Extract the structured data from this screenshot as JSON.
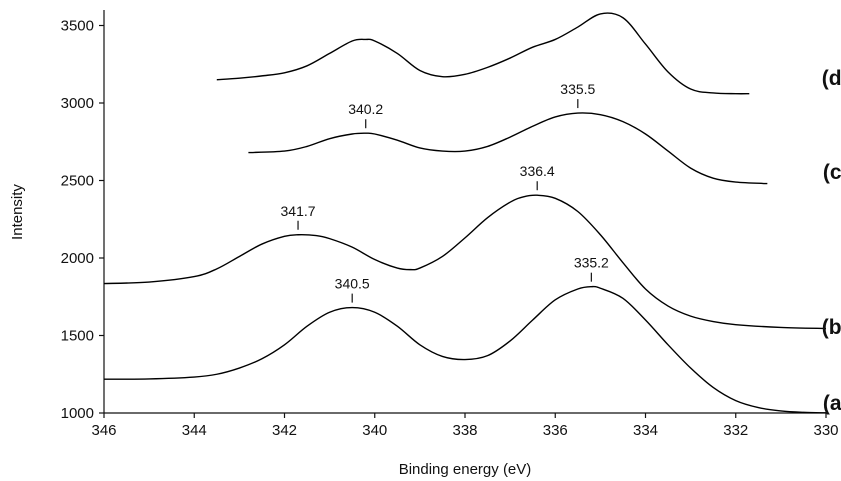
{
  "chart_data": {
    "type": "line",
    "xlabel": "Binding energy (eV)",
    "ylabel": "Intensity",
    "xlim": [
      346,
      330
    ],
    "ylim": [
      1000,
      3600
    ],
    "x_reversed": true,
    "grid": false,
    "xticks": [
      346,
      344,
      342,
      340,
      338,
      336,
      334,
      332,
      330
    ],
    "yticks": [
      1000,
      1500,
      2000,
      2500,
      3000,
      3500
    ],
    "series": [
      {
        "name": "(a)",
        "x": [
          346,
          345,
          344,
          343.5,
          343,
          342.5,
          342,
          341.5,
          341,
          340.5,
          340,
          339.5,
          339,
          338.5,
          338,
          337.5,
          337,
          336.5,
          336,
          335.5,
          335.2,
          335,
          334.5,
          334,
          333.5,
          333,
          332.5,
          332,
          331.5,
          331,
          330.5,
          330
        ],
        "values": [
          1218,
          1220,
          1232,
          1250,
          1290,
          1350,
          1440,
          1560,
          1650,
          1680,
          1650,
          1560,
          1440,
          1365,
          1345,
          1370,
          1465,
          1600,
          1730,
          1800,
          1815,
          1805,
          1740,
          1600,
          1440,
          1290,
          1165,
          1080,
          1035,
          1013,
          1004,
          1001
        ],
        "label_x": 329.5,
        "label_y": 1065
      },
      {
        "name": "(b)",
        "x": [
          346,
          345,
          344,
          343.5,
          343,
          342.5,
          342,
          341.7,
          341.3,
          341,
          340.5,
          340,
          339.5,
          339.2,
          339,
          338.5,
          338,
          337.5,
          337,
          336.7,
          336.4,
          336,
          335.5,
          335,
          334.5,
          334,
          333.5,
          333,
          332.5,
          332,
          331,
          330
        ],
        "values": [
          1835,
          1845,
          1880,
          1930,
          2010,
          2090,
          2140,
          2150,
          2145,
          2125,
          2070,
          1990,
          1935,
          1925,
          1935,
          2010,
          2130,
          2260,
          2360,
          2395,
          2405,
          2385,
          2300,
          2150,
          1970,
          1800,
          1690,
          1625,
          1590,
          1570,
          1552,
          1545
        ],
        "label_x": 329.5,
        "label_y": 1555
      },
      {
        "name": "(c)",
        "x": [
          342.8,
          342,
          341.5,
          341,
          340.5,
          340.2,
          340,
          339.5,
          339,
          338.5,
          338,
          337.5,
          337,
          336.5,
          336,
          335.5,
          335,
          334.5,
          334,
          333.5,
          333,
          332.5,
          332,
          331.3
        ],
        "values": [
          2680,
          2690,
          2720,
          2770,
          2800,
          2805,
          2800,
          2760,
          2710,
          2690,
          2690,
          2720,
          2780,
          2850,
          2910,
          2935,
          2925,
          2880,
          2800,
          2690,
          2580,
          2515,
          2490,
          2480
        ],
        "label_x": 329.5,
        "label_y": 2555
      },
      {
        "name": "(d)",
        "x": [
          343.5,
          343,
          342.5,
          342,
          341.5,
          341,
          340.5,
          340.2,
          340,
          339.5,
          339,
          338.5,
          338,
          337.5,
          337,
          336.5,
          336,
          335.5,
          335,
          334.5,
          334,
          333.5,
          333,
          332.5,
          332,
          331.7
        ],
        "values": [
          3150,
          3160,
          3175,
          3195,
          3240,
          3320,
          3400,
          3410,
          3400,
          3320,
          3210,
          3170,
          3185,
          3230,
          3290,
          3360,
          3410,
          3490,
          3575,
          3550,
          3380,
          3200,
          3090,
          3065,
          3060,
          3060
        ],
        "label_x": 329.5,
        "label_y": 3160
      }
    ],
    "annotations": [
      {
        "text": "340.5",
        "x": 340.5,
        "y": 1680
      },
      {
        "text": "335.2",
        "x": 335.2,
        "y": 1815
      },
      {
        "text": "341.7",
        "x": 341.7,
        "y": 2150
      },
      {
        "text": "336.4",
        "x": 336.4,
        "y": 2405
      },
      {
        "text": "340.2",
        "x": 340.2,
        "y": 2805
      },
      {
        "text": "335.5",
        "x": 335.5,
        "y": 2935
      }
    ]
  }
}
